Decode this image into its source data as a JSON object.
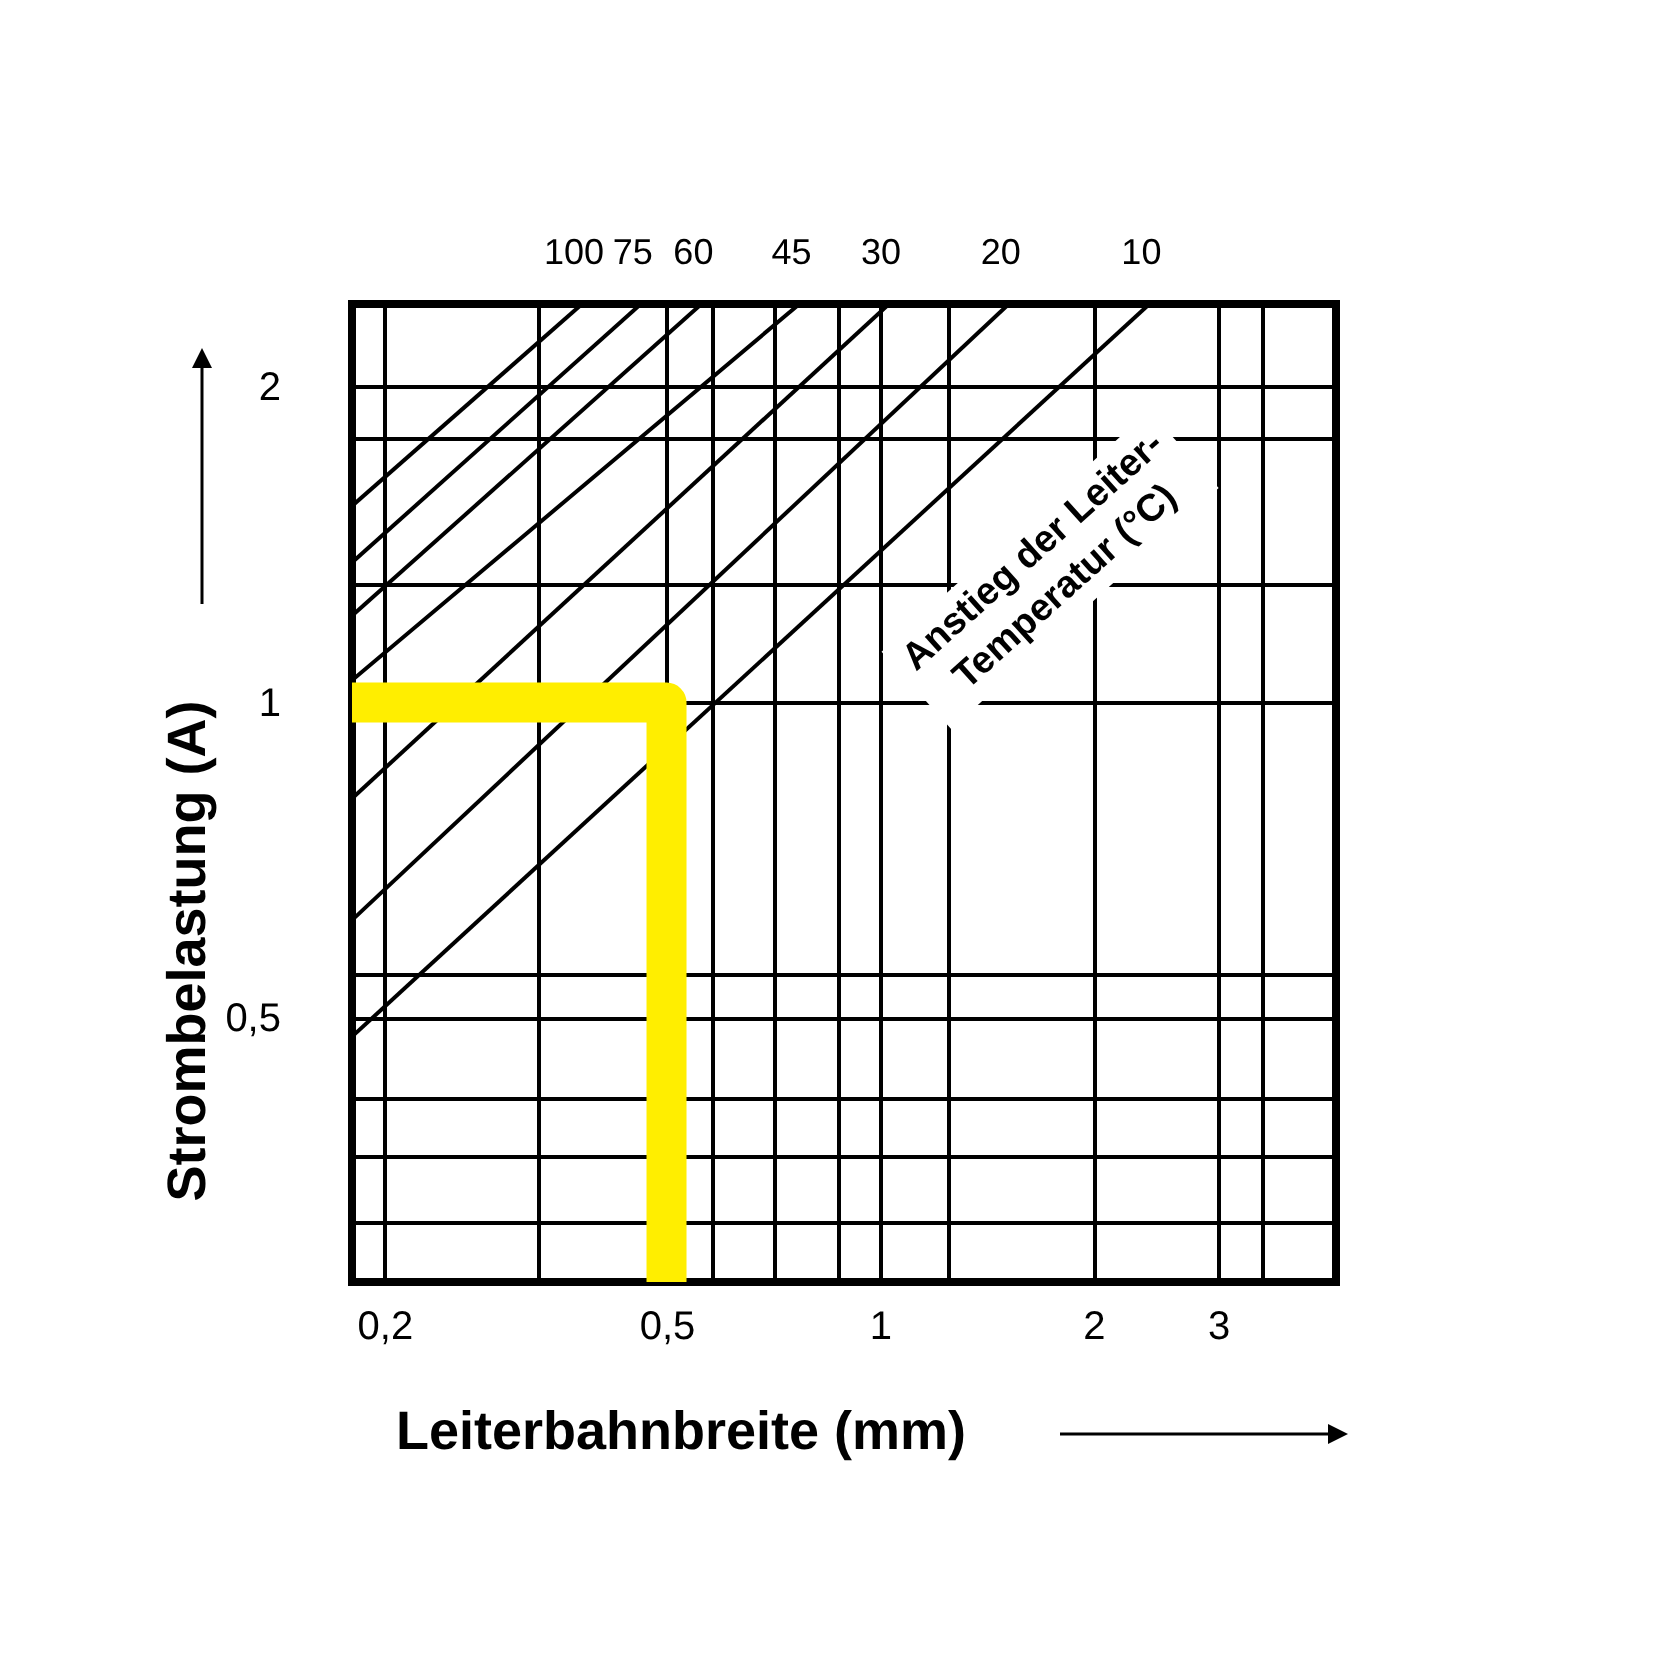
{
  "chart_data": {
    "type": "line",
    "xlabel": "Leiterbahnbreite (mm)",
    "ylabel": "Strombelastung (A)",
    "log": "xy",
    "grid": true,
    "xlim": [
      0.18,
      4.4
    ],
    "ylim": [
      0.28,
      2.4
    ],
    "xticks": [
      {
        "value": 0.2,
        "label": "0,2"
      },
      {
        "value": 0.33,
        "label": null
      },
      {
        "value": 0.5,
        "label": "0,5"
      },
      {
        "value": 0.58,
        "label": null
      },
      {
        "value": 0.71,
        "label": null
      },
      {
        "value": 0.87,
        "label": null
      },
      1,
      {
        "value": 1.25,
        "label": null
      },
      2,
      3,
      {
        "value": 3.47,
        "label": null
      }
    ],
    "yticks": [
      2,
      {
        "value": 1.79,
        "label": null
      },
      {
        "value": 1.3,
        "label": null
      },
      1,
      {
        "value": 0.55,
        "label": null
      },
      {
        "value": 0.5,
        "label": "0,5"
      },
      {
        "value": 0.42,
        "label": null
      },
      {
        "value": 0.37,
        "label": null
      },
      {
        "value": 0.32,
        "label": null
      }
    ],
    "annotations": [
      "Anstieg der Leiter-\nTemperatur (°C)"
    ],
    "series": [
      {
        "name": "100",
        "color": "#000000",
        "x": [
          0.38,
          0.18
        ],
        "values": [
          2.4,
          1.54
        ]
      },
      {
        "name": "75",
        "color": "#000000",
        "x": [
          0.46,
          0.18
        ],
        "values": [
          2.4,
          1.36
        ]
      },
      {
        "name": "60",
        "color": "#000000",
        "x": [
          0.56,
          0.18
        ],
        "values": [
          2.4,
          1.21
        ]
      },
      {
        "name": "45",
        "color": "#000000",
        "x": [
          0.77,
          0.18
        ],
        "values": [
          2.4,
          1.05
        ]
      },
      {
        "name": "30",
        "color": "#000000",
        "x": [
          1.03,
          0.18
        ],
        "values": [
          2.4,
          0.81
        ]
      },
      {
        "name": "20",
        "color": "#000000",
        "x": [
          1.52,
          0.18
        ],
        "values": [
          2.4,
          0.62
        ]
      },
      {
        "name": "10",
        "color": "#000000",
        "x": [
          2.4,
          0.18
        ],
        "values": [
          2.4,
          0.48
        ]
      },
      {
        "color": "#ffee00",
        "x": [
          0.18,
          0.5,
          0.5
        ],
        "values": [
          1,
          1,
          0.28
        ]
      }
    ]
  }
}
